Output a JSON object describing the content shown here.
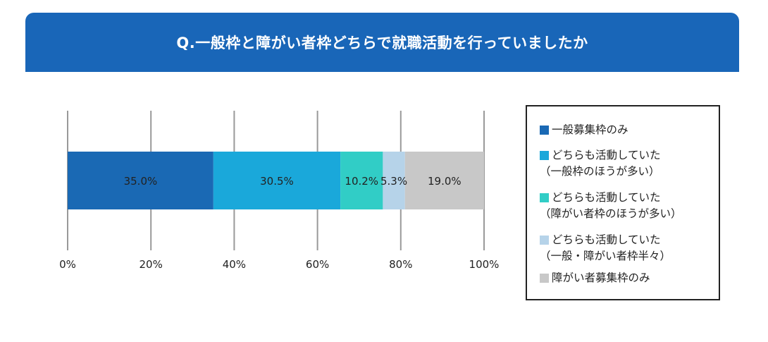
{
  "title": "Q.一般枠と障がい者枠どちらで就職活動を行っていましたか",
  "colors": {
    "header_bg": "#1966b8",
    "grid": "#999999"
  },
  "legend": {
    "items": [
      {
        "line1": "一般募集枠のみ",
        "line2": "",
        "color": "#1a69b4"
      },
      {
        "line1": "どちらも活動していた",
        "line2": "（一般枠のほうが多い）",
        "color": "#1aa8da"
      },
      {
        "line1": "どちらも活動していた",
        "line2": "（障がい者枠のほうが多い）",
        "color": "#31cdc6"
      },
      {
        "line1": "どちらも活動していた",
        "line2": "（一般・障がい者枠半々）",
        "color": "#b6d3e9"
      },
      {
        "line1": "障がい者募集枠のみ",
        "line2": "",
        "color": "#c8c8c8"
      }
    ]
  },
  "chart_data": {
    "type": "bar",
    "orientation": "horizontal",
    "stacked": true,
    "categories": [
      ""
    ],
    "series": [
      {
        "name": "一般募集枠のみ",
        "values": [
          35.0
        ],
        "label": "35.0%",
        "color": "#1a69b4"
      },
      {
        "name": "どちらも活動していた（一般枠のほうが多い）",
        "values": [
          30.5
        ],
        "label": "30.5%",
        "color": "#1aa8da"
      },
      {
        "name": "どちらも活動していた（障がい者枠のほうが多い）",
        "values": [
          10.2
        ],
        "label": "10.2%",
        "color": "#31cdc6"
      },
      {
        "name": "どちらも活動していた（一般・障がい者枠半々）",
        "values": [
          5.3
        ],
        "label": "5.3%",
        "color": "#b6d3e9"
      },
      {
        "name": "障がい者募集枠のみ",
        "values": [
          19.0
        ],
        "label": "19.0%",
        "color": "#c8c8c8"
      }
    ],
    "xlim": [
      0,
      100
    ],
    "xticks": [
      0,
      20,
      40,
      60,
      80,
      100
    ],
    "xtick_labels": [
      "0%",
      "20%",
      "40%",
      "60%",
      "80%",
      "100%"
    ],
    "grid": true,
    "legend_position": "right"
  }
}
